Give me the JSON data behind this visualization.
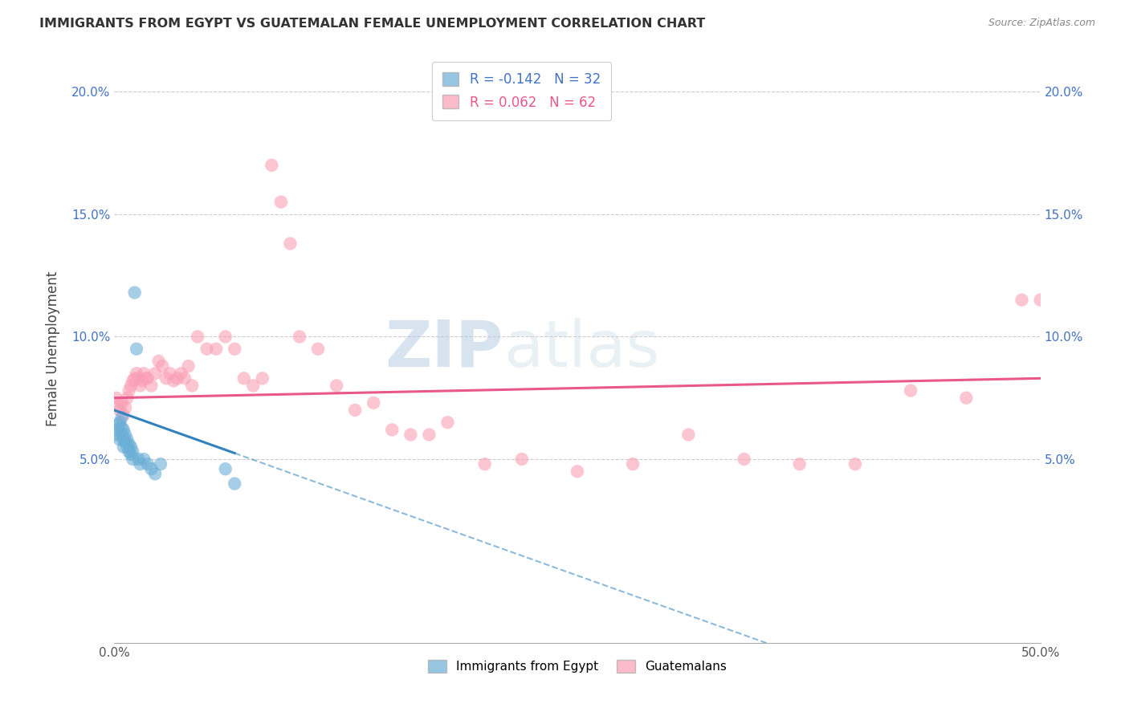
{
  "title": "IMMIGRANTS FROM EGYPT VS GUATEMALAN FEMALE UNEMPLOYMENT CORRELATION CHART",
  "source": "Source: ZipAtlas.com",
  "xlabel": "",
  "ylabel": "Female Unemployment",
  "xlim": [
    0.0,
    0.5
  ],
  "ylim": [
    -0.025,
    0.215
  ],
  "yticks": [
    0.05,
    0.1,
    0.15,
    0.2
  ],
  "ytick_labels": [
    "5.0%",
    "10.0%",
    "15.0%",
    "20.0%"
  ],
  "xticks": [
    0.0,
    0.1,
    0.2,
    0.3,
    0.4,
    0.5
  ],
  "xtick_labels": [
    "0.0%",
    "",
    "",
    "",
    "",
    "50.0%"
  ],
  "blue_R": "-0.142",
  "blue_N": "32",
  "pink_R": "0.062",
  "pink_N": "62",
  "blue_color": "#6baed6",
  "pink_color": "#fa9fb5",
  "blue_line_color": "#3182bd",
  "pink_line_color": "#e8588a",
  "watermark_zip": "ZIP",
  "watermark_atlas": "atlas",
  "legend_label_blue": "Immigrants from Egypt",
  "legend_label_pink": "Guatemalans",
  "blue_scatter_x": [
    0.001,
    0.002,
    0.002,
    0.003,
    0.003,
    0.004,
    0.004,
    0.004,
    0.005,
    0.005,
    0.005,
    0.006,
    0.006,
    0.007,
    0.007,
    0.008,
    0.008,
    0.009,
    0.009,
    0.01,
    0.01,
    0.011,
    0.012,
    0.013,
    0.014,
    0.016,
    0.018,
    0.02,
    0.022,
    0.025,
    0.06,
    0.065
  ],
  "blue_scatter_y": [
    0.06,
    0.062,
    0.064,
    0.058,
    0.065,
    0.06,
    0.063,
    0.067,
    0.055,
    0.058,
    0.062,
    0.057,
    0.06,
    0.055,
    0.058,
    0.053,
    0.056,
    0.052,
    0.055,
    0.05,
    0.053,
    0.118,
    0.095,
    0.05,
    0.048,
    0.05,
    0.048,
    0.046,
    0.044,
    0.048,
    0.046,
    0.04
  ],
  "pink_scatter_x": [
    0.001,
    0.002,
    0.003,
    0.004,
    0.005,
    0.006,
    0.007,
    0.008,
    0.009,
    0.01,
    0.011,
    0.012,
    0.013,
    0.014,
    0.015,
    0.016,
    0.017,
    0.018,
    0.02,
    0.022,
    0.024,
    0.026,
    0.028,
    0.03,
    0.032,
    0.034,
    0.036,
    0.038,
    0.04,
    0.042,
    0.045,
    0.05,
    0.055,
    0.06,
    0.065,
    0.07,
    0.075,
    0.08,
    0.085,
    0.09,
    0.095,
    0.1,
    0.11,
    0.12,
    0.13,
    0.14,
    0.15,
    0.16,
    0.17,
    0.18,
    0.2,
    0.22,
    0.25,
    0.28,
    0.31,
    0.34,
    0.37,
    0.4,
    0.43,
    0.46,
    0.49,
    0.5
  ],
  "pink_scatter_y": [
    0.075,
    0.072,
    0.07,
    0.073,
    0.068,
    0.071,
    0.075,
    0.078,
    0.08,
    0.082,
    0.083,
    0.085,
    0.083,
    0.08,
    0.082,
    0.085,
    0.083,
    0.083,
    0.08,
    0.085,
    0.09,
    0.088,
    0.083,
    0.085,
    0.082,
    0.083,
    0.085,
    0.083,
    0.088,
    0.08,
    0.1,
    0.095,
    0.095,
    0.1,
    0.095,
    0.083,
    0.08,
    0.083,
    0.17,
    0.155,
    0.138,
    0.1,
    0.095,
    0.08,
    0.07,
    0.073,
    0.062,
    0.06,
    0.06,
    0.065,
    0.048,
    0.05,
    0.045,
    0.048,
    0.06,
    0.05,
    0.048,
    0.048,
    0.078,
    0.075,
    0.115,
    0.115
  ],
  "blue_trend_x0": 0.0,
  "blue_trend_y0": 0.07,
  "blue_trend_x1": 0.1,
  "blue_trend_y1": 0.043,
  "pink_trend_x0": 0.0,
  "pink_trend_y0": 0.075,
  "pink_trend_x1": 0.5,
  "pink_trend_y1": 0.083
}
